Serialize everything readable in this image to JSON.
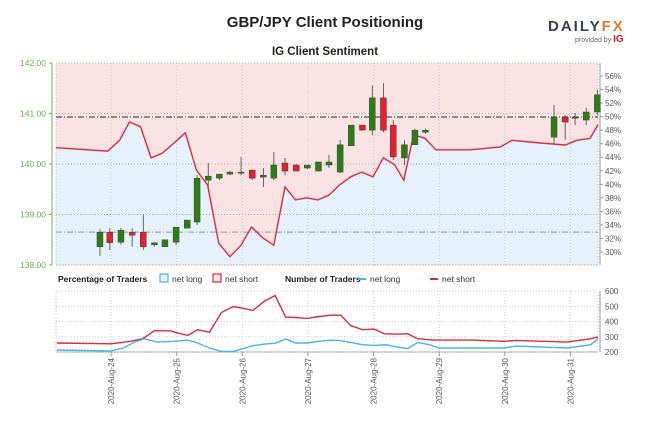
{
  "header": {
    "title": "GBP/JPY Client Positioning",
    "subtitle": "IG Client Sentiment",
    "logo_left": "DAILY",
    "logo_right": "FX",
    "provided_by": "provided by",
    "provider": "IG"
  },
  "colors": {
    "bull": "#2d7d16",
    "bear": "#e3202b",
    "long": "#4ab4ee",
    "short": "#dd2a3e",
    "price_axis": "#6ab04c",
    "short_zone": "#fae3e5",
    "long_zone": "#e5f2fb"
  },
  "legend": {
    "pct_title": "Percentage of Traders",
    "pct_long": "net long",
    "pct_short": "net short",
    "num_title": "Number of Traders",
    "num_long": "net long",
    "num_short": "net short"
  },
  "chart_data": [
    {
      "type": "candlestick",
      "title": "IG Client Sentiment",
      "x_unit": "days since 2020-Aug-23 00:00",
      "xlim": [
        0.16,
        8.42
      ],
      "ylim": [
        138,
        142
      ],
      "y_ticks": [
        "142.00",
        "141.00",
        "140.00",
        "139.00",
        "138.00"
      ],
      "y2lim": [
        28,
        58
      ],
      "y2_ticks": [
        "56%",
        "54%",
        "52%",
        "50%",
        "48%",
        "46%",
        "44%",
        "42%",
        "40%",
        "38%",
        "36%",
        "34%",
        "32%",
        "30%"
      ],
      "ref_lines": [
        140.93,
        138.65
      ],
      "candles": [
        [
          0.83,
          138.36,
          138.71,
          138.18,
          138.65
        ],
        [
          0.98,
          138.65,
          138.73,
          138.3,
          138.44
        ],
        [
          1.15,
          138.45,
          138.73,
          138.4,
          138.69
        ],
        [
          1.32,
          138.65,
          138.73,
          138.36,
          138.59
        ],
        [
          1.49,
          138.65,
          139.0,
          138.3,
          138.36
        ],
        [
          1.66,
          138.4,
          138.45,
          138.36,
          138.44
        ],
        [
          1.82,
          138.36,
          138.5,
          138.36,
          138.5
        ],
        [
          1.99,
          138.45,
          138.75,
          138.4,
          138.75
        ],
        [
          2.16,
          138.73,
          138.89,
          138.73,
          138.89
        ],
        [
          2.31,
          138.85,
          139.78,
          138.79,
          139.72
        ],
        [
          2.48,
          139.68,
          140.02,
          139.54,
          139.76
        ],
        [
          2.65,
          139.72,
          139.8,
          139.68,
          139.8
        ],
        [
          2.81,
          139.8,
          139.86,
          139.78,
          139.84
        ],
        [
          2.98,
          139.82,
          140.14,
          139.78,
          139.84
        ],
        [
          3.15,
          139.88,
          139.88,
          139.68,
          139.72
        ],
        [
          3.32,
          139.74,
          139.92,
          139.54,
          139.78
        ],
        [
          3.48,
          139.72,
          140.24,
          139.68,
          139.98
        ],
        [
          3.65,
          140.02,
          140.12,
          139.78,
          139.86
        ],
        [
          3.82,
          139.98,
          140.0,
          139.86,
          139.86
        ],
        [
          3.99,
          139.92,
          139.98,
          139.9,
          139.98
        ],
        [
          4.16,
          139.86,
          140.04,
          139.86,
          140.04
        ],
        [
          4.32,
          139.98,
          140.18,
          139.92,
          140.04
        ],
        [
          4.49,
          139.84,
          140.48,
          139.82,
          140.38
        ],
        [
          4.66,
          140.36,
          140.77,
          140.36,
          140.77
        ],
        [
          4.83,
          140.77,
          140.77,
          140.67,
          140.67
        ],
        [
          4.98,
          140.67,
          141.56,
          140.57,
          141.31
        ],
        [
          5.15,
          141.31,
          141.6,
          140.63,
          140.67
        ],
        [
          5.3,
          140.77,
          140.87,
          140.08,
          140.14
        ],
        [
          5.47,
          140.12,
          140.48,
          139.98,
          140.38
        ],
        [
          5.63,
          140.38,
          140.7,
          140.38,
          140.67
        ],
        [
          5.79,
          140.63,
          140.7,
          140.6,
          140.67
        ],
        [
          7.75,
          140.53,
          141.17,
          140.38,
          140.93
        ],
        [
          7.92,
          140.93,
          140.97,
          140.48,
          140.83
        ],
        [
          8.07,
          140.91,
          141.01,
          140.77,
          140.93
        ],
        [
          8.24,
          140.87,
          141.11,
          140.77,
          141.03
        ],
        [
          8.41,
          141.03,
          141.47,
          140.97,
          141.37
        ]
      ],
      "net_short_pct": {
        "t": [
          0.16,
          0.95,
          1.13,
          1.28,
          1.45,
          1.61,
          1.78,
          1.96,
          2.13,
          2.3,
          2.47,
          2.64,
          2.81,
          2.98,
          3.14,
          3.31,
          3.48,
          3.65,
          3.81,
          3.98,
          4.15,
          4.32,
          4.48,
          4.65,
          4.82,
          4.99,
          5.15,
          5.32,
          5.46,
          5.61,
          5.78,
          5.95,
          6.47,
          6.93,
          7.11,
          7.54,
          7.92,
          8.1,
          8.3,
          8.42
        ],
        "values": [
          45.4,
          44.9,
          46.5,
          49.2,
          48.5,
          43.9,
          44.6,
          46.1,
          47.6,
          42.1,
          39.9,
          31.3,
          29.3,
          31.0,
          33.7,
          32.1,
          31.0,
          39.6,
          37.7,
          38.0,
          37.7,
          38.4,
          39.9,
          41.1,
          41.8,
          41.1,
          43.9,
          42.9,
          40.6,
          47.3,
          46.8,
          45.1,
          45.1,
          45.5,
          46.5,
          46.1,
          45.8,
          46.5,
          46.8,
          48.8
        ]
      }
    },
    {
      "type": "line",
      "title": "Number of Traders",
      "x_unit": "days since 2020-Aug-23 00:00",
      "xlim": [
        0.16,
        8.42
      ],
      "ylim": [
        200,
        600
      ],
      "y_ticks": [
        "600",
        "500",
        "400",
        "300",
        "200"
      ],
      "x_ticks": [
        {
          "t": 1,
          "label": "2020-Aug-24"
        },
        {
          "t": 2,
          "label": "2020-Aug-25"
        },
        {
          "t": 3,
          "label": "2020-Aug-26"
        },
        {
          "t": 4,
          "label": "2020-Aug-27"
        },
        {
          "t": 5,
          "label": "2020-Aug-28"
        },
        {
          "t": 6,
          "label": "2020-Aug-29"
        },
        {
          "t": 7,
          "label": "2020-Aug-30"
        },
        {
          "t": 8,
          "label": "2020-Aug-31"
        }
      ],
      "series": [
        {
          "name": "net short",
          "t": [
            0.17,
            1,
            1.3,
            1.48,
            1.66,
            1.9,
            2.02,
            2.17,
            2.32,
            2.5,
            2.68,
            2.86,
            3.01,
            3.16,
            3.34,
            3.5,
            3.66,
            3.81,
            3.99,
            4.17,
            4.35,
            4.5,
            4.65,
            4.83,
            5.01,
            5.16,
            5.37,
            5.52,
            5.67,
            5.91,
            6.51,
            6.99,
            7.17,
            7.95,
            8.31,
            8.42
          ],
          "values": [
            259,
            254,
            270,
            287,
            339,
            339,
            324,
            309,
            346,
            330,
            459,
            498,
            487,
            472,
            535,
            570,
            428,
            426,
            420,
            433,
            441,
            441,
            374,
            346,
            350,
            320,
            317,
            320,
            287,
            278,
            278,
            270,
            276,
            265,
            287,
            298
          ]
        },
        {
          "name": "net long",
          "t": [
            0.17,
            1,
            1.18,
            1.36,
            1.51,
            1.69,
            1.96,
            2.17,
            2.32,
            2.5,
            2.68,
            2.86,
            3.01,
            3.16,
            3.34,
            3.5,
            3.66,
            3.81,
            3.99,
            4.17,
            4.35,
            4.5,
            4.65,
            4.83,
            5.01,
            5.19,
            5.31,
            5.52,
            5.67,
            5.85,
            6.0,
            6.99,
            7.17,
            7.95,
            8.31,
            8.42
          ],
          "values": [
            213,
            207,
            226,
            265,
            287,
            265,
            270,
            278,
            259,
            226,
            204,
            204,
            222,
            241,
            252,
            257,
            285,
            259,
            259,
            270,
            278,
            274,
            263,
            248,
            243,
            248,
            237,
            222,
            263,
            248,
            226,
            226,
            239,
            226,
            248,
            287
          ]
        }
      ]
    }
  ]
}
